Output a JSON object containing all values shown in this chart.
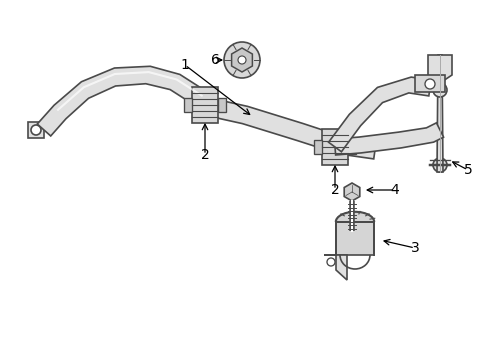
{
  "bg_color": "#ffffff",
  "line_color": "#4a4a4a",
  "label_color": "#000000",
  "fig_width": 4.9,
  "fig_height": 3.6,
  "dpi": 100,
  "bar_color": "#e0e0e0",
  "bar_edge": "#555555",
  "bar_lw": 1.2
}
